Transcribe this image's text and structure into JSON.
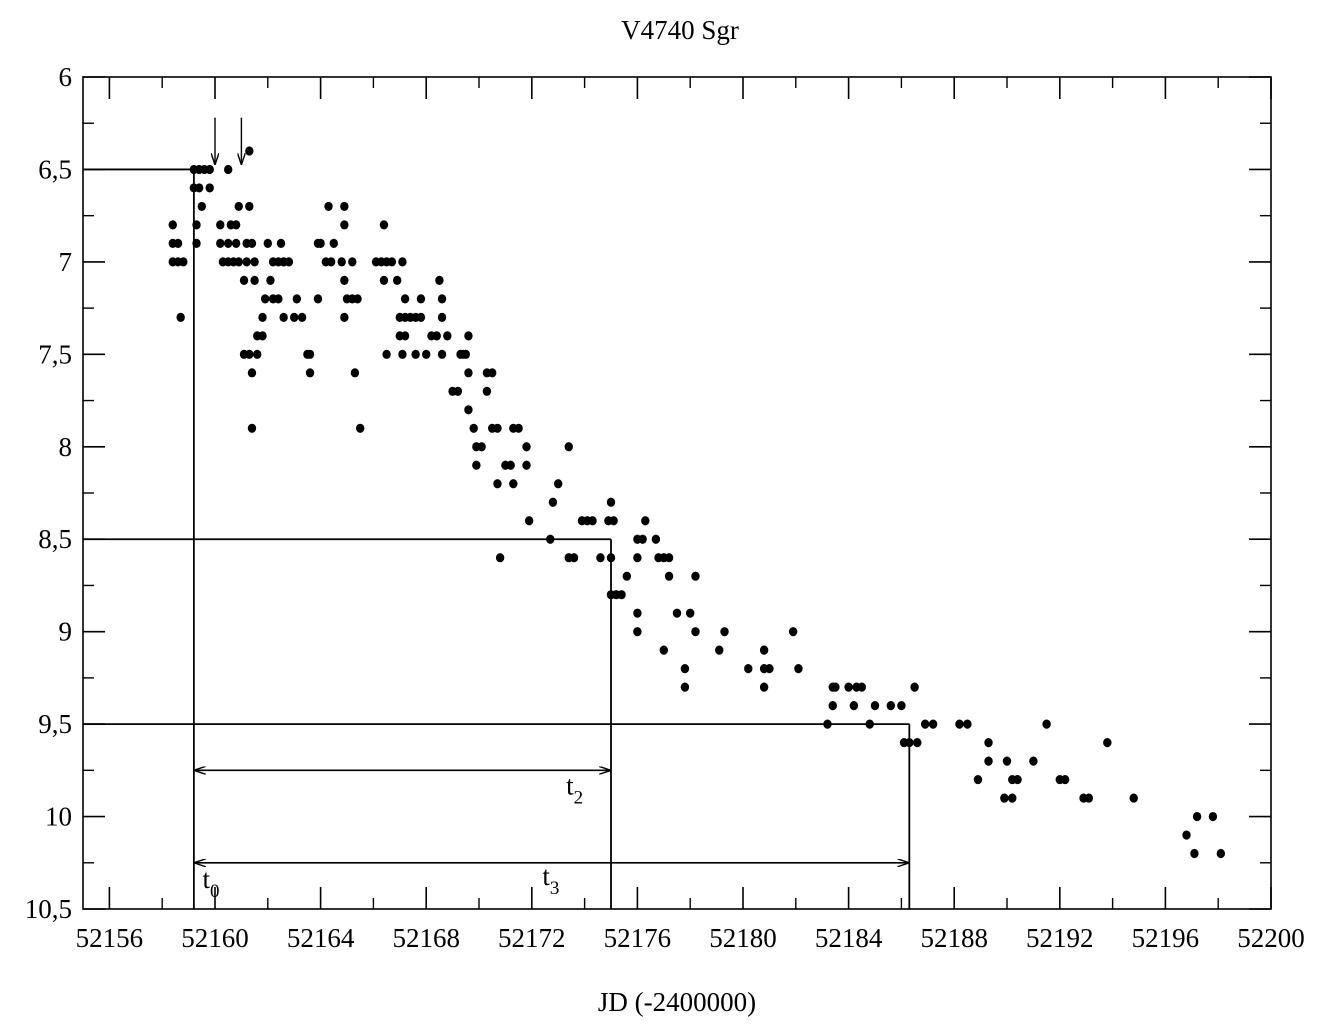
{
  "chart_data": {
    "type": "scatter",
    "title": "V4740 Sgr",
    "xlabel": "JD (-2400000)",
    "ylabel": "",
    "xlim": [
      52155,
      52200
    ],
    "ylim": [
      6,
      10.5
    ],
    "y_inverted": true,
    "grid": false,
    "legend": "none",
    "x_ticks": [
      52156,
      52160,
      52164,
      52168,
      52172,
      52176,
      52180,
      52184,
      52188,
      52192,
      52196,
      52200
    ],
    "x_tick_labels": [
      "52156",
      "52160",
      "52164",
      "52168",
      "52172",
      "52176",
      "52180",
      "52184",
      "52188",
      "52192",
      "52196",
      "52200"
    ],
    "y_ticks": [
      6,
      6.5,
      7,
      7.5,
      8,
      8.5,
      9,
      9.5,
      10,
      10.5
    ],
    "y_tick_labels": [
      "6",
      "6,5",
      "7",
      "7,5",
      "8",
      "8,5",
      "9",
      "9,5",
      "10",
      "10,5"
    ],
    "reference_lines": [
      {
        "y": 6.5,
        "x_from": 52155,
        "x_to": 52159.2
      },
      {
        "x": 52159.2,
        "y_from": 6.5,
        "y_to": 10.5
      },
      {
        "y": 8.5,
        "x_from": 52155,
        "x_to": 52175
      },
      {
        "x": 52175,
        "y_from": 8.5,
        "y_to": 10.5
      },
      {
        "y": 9.5,
        "x_from": 52155,
        "x_to": 52186.3
      },
      {
        "x": 52186.3,
        "y_from": 9.5,
        "y_to": 10.5
      }
    ],
    "arrows": [
      {
        "x": 52160.0,
        "y_from": 6.22,
        "y_to": 6.47
      },
      {
        "x": 52161.0,
        "y_from": 6.22,
        "y_to": 6.47
      }
    ],
    "intervals": [
      {
        "label": "t",
        "sub": "2",
        "y": 9.75,
        "x_from": 52159.2,
        "x_to": 52175,
        "label_x": 52173.3,
        "label_y": 9.88
      },
      {
        "label": "t",
        "sub": "3",
        "y": 10.25,
        "x_from": 52159.2,
        "x_to": 52186.3,
        "label_x": 52172.4,
        "label_y": 10.37
      }
    ],
    "annotations": [
      {
        "label": "t",
        "sub": "0",
        "x": 52159.6,
        "y": 10.42
      }
    ],
    "series": [
      {
        "name": "",
        "points": [
          [
            52158.4,
            6.8
          ],
          [
            52158.4,
            6.9
          ],
          [
            52158.6,
            6.9
          ],
          [
            52158.4,
            7.0
          ],
          [
            52158.6,
            7.0
          ],
          [
            52158.8,
            7.0
          ],
          [
            52158.7,
            7.3
          ],
          [
            52159.2,
            6.5
          ],
          [
            52159.4,
            6.5
          ],
          [
            52159.6,
            6.5
          ],
          [
            52159.8,
            6.5
          ],
          [
            52159.2,
            6.6
          ],
          [
            52159.4,
            6.6
          ],
          [
            52159.8,
            6.6
          ],
          [
            52159.5,
            6.7
          ],
          [
            52159.3,
            6.8
          ],
          [
            52159.3,
            6.9
          ],
          [
            52160.5,
            6.5
          ],
          [
            52161.3,
            6.4
          ],
          [
            52160.2,
            6.8
          ],
          [
            52160.6,
            6.8
          ],
          [
            52160.8,
            6.8
          ],
          [
            52160.2,
            6.9
          ],
          [
            52160.5,
            6.9
          ],
          [
            52160.8,
            6.9
          ],
          [
            52160.3,
            7.0
          ],
          [
            52160.5,
            7.0
          ],
          [
            52160.7,
            7.0
          ],
          [
            52160.9,
            7.0
          ],
          [
            52160.9,
            6.7
          ],
          [
            52161.3,
            6.7
          ],
          [
            52161.2,
            6.9
          ],
          [
            52161.4,
            6.9
          ],
          [
            52161.2,
            7.0
          ],
          [
            52161.5,
            7.0
          ],
          [
            52161.1,
            7.1
          ],
          [
            52161.5,
            7.1
          ],
          [
            52161.1,
            7.5
          ],
          [
            52161.3,
            7.5
          ],
          [
            52161.6,
            7.5
          ],
          [
            52161.4,
            7.6
          ],
          [
            52161.4,
            7.9
          ],
          [
            52161.6,
            7.4
          ],
          [
            52161.8,
            7.4
          ],
          [
            52161.8,
            7.3
          ],
          [
            52161.9,
            7.2
          ],
          [
            52162.0,
            6.9
          ],
          [
            52162.1,
            7.1
          ],
          [
            52162.2,
            7.0
          ],
          [
            52162.4,
            7.0
          ],
          [
            52162.6,
            7.0
          ],
          [
            52162.2,
            7.2
          ],
          [
            52162.4,
            7.2
          ],
          [
            52162.6,
            7.3
          ],
          [
            52162.5,
            6.9
          ],
          [
            52162.6,
            7.0
          ],
          [
            52162.8,
            7.0
          ],
          [
            52163.0,
            7.3
          ],
          [
            52163.1,
            7.2
          ],
          [
            52163.3,
            7.3
          ],
          [
            52163.5,
            7.5
          ],
          [
            52163.6,
            7.5
          ],
          [
            52163.6,
            7.6
          ],
          [
            52163.9,
            7.2
          ],
          [
            52163.9,
            6.9
          ],
          [
            52164.0,
            6.9
          ],
          [
            52164.2,
            7.0
          ],
          [
            52164.4,
            7.0
          ],
          [
            52164.3,
            6.7
          ],
          [
            52164.5,
            6.9
          ],
          [
            52164.8,
            7.0
          ],
          [
            52164.9,
            6.7
          ],
          [
            52164.9,
            6.8
          ],
          [
            52164.9,
            7.1
          ],
          [
            52164.9,
            7.3
          ],
          [
            52165.0,
            7.2
          ],
          [
            52165.2,
            7.2
          ],
          [
            52165.4,
            7.2
          ],
          [
            52165.2,
            7.0
          ],
          [
            52165.3,
            7.6
          ],
          [
            52165.5,
            7.9
          ],
          [
            52166.1,
            7.0
          ],
          [
            52166.3,
            7.0
          ],
          [
            52166.5,
            7.0
          ],
          [
            52166.7,
            7.0
          ],
          [
            52166.4,
            6.8
          ],
          [
            52166.4,
            7.1
          ],
          [
            52166.5,
            7.5
          ],
          [
            52166.9,
            7.1
          ],
          [
            52167.0,
            7.3
          ],
          [
            52167.2,
            7.3
          ],
          [
            52167.1,
            7.0
          ],
          [
            52167.0,
            7.4
          ],
          [
            52167.2,
            7.4
          ],
          [
            52167.1,
            7.5
          ],
          [
            52167.2,
            7.2
          ],
          [
            52167.4,
            7.3
          ],
          [
            52167.6,
            7.3
          ],
          [
            52167.8,
            7.2
          ],
          [
            52167.6,
            7.5
          ],
          [
            52167.8,
            7.3
          ],
          [
            52168.0,
            7.5
          ],
          [
            52168.2,
            7.4
          ],
          [
            52168.4,
            7.4
          ],
          [
            52168.5,
            7.1
          ],
          [
            52168.6,
            7.2
          ],
          [
            52168.6,
            7.3
          ],
          [
            52168.6,
            7.5
          ],
          [
            52168.8,
            7.4
          ],
          [
            52169.0,
            7.7
          ],
          [
            52169.2,
            7.7
          ],
          [
            52169.3,
            7.5
          ],
          [
            52169.5,
            7.5
          ],
          [
            52169.6,
            7.4
          ],
          [
            52169.4,
            7.5
          ],
          [
            52169.6,
            7.6
          ],
          [
            52169.6,
            7.8
          ],
          [
            52169.9,
            8.0
          ],
          [
            52169.9,
            8.1
          ],
          [
            52169.8,
            7.9
          ],
          [
            52170.1,
            8.0
          ],
          [
            52170.3,
            7.7
          ],
          [
            52170.5,
            7.6
          ],
          [
            52170.3,
            7.6
          ],
          [
            52170.5,
            7.9
          ],
          [
            52170.7,
            7.9
          ],
          [
            52170.7,
            8.2
          ],
          [
            52170.8,
            8.6
          ],
          [
            52171.0,
            8.1
          ],
          [
            52171.2,
            8.1
          ],
          [
            52171.3,
            8.2
          ],
          [
            52171.3,
            7.9
          ],
          [
            52171.5,
            7.9
          ],
          [
            52171.8,
            8.0
          ],
          [
            52171.8,
            8.1
          ],
          [
            52171.9,
            8.4
          ],
          [
            52172.7,
            8.5
          ],
          [
            52172.8,
            8.3
          ],
          [
            52173.0,
            8.2
          ],
          [
            52173.4,
            8.0
          ],
          [
            52173.4,
            8.6
          ],
          [
            52173.6,
            8.6
          ],
          [
            52173.9,
            8.4
          ],
          [
            52174.1,
            8.4
          ],
          [
            52174.3,
            8.4
          ],
          [
            52174.6,
            8.6
          ],
          [
            52174.9,
            8.4
          ],
          [
            52175.1,
            8.4
          ],
          [
            52175.0,
            8.3
          ],
          [
            52175.0,
            8.6
          ],
          [
            52175.0,
            8.8
          ],
          [
            52175.2,
            8.8
          ],
          [
            52175.4,
            8.8
          ],
          [
            52175.6,
            8.7
          ],
          [
            52176.0,
            8.5
          ],
          [
            52176.2,
            8.5
          ],
          [
            52176.0,
            8.6
          ],
          [
            52176.0,
            8.9
          ],
          [
            52176.0,
            9.0
          ],
          [
            52176.3,
            8.4
          ],
          [
            52176.7,
            8.5
          ],
          [
            52176.8,
            8.6
          ],
          [
            52177.0,
            8.6
          ],
          [
            52177.0,
            9.1
          ],
          [
            52177.2,
            8.6
          ],
          [
            52177.2,
            8.7
          ],
          [
            52177.5,
            8.9
          ],
          [
            52178.0,
            8.9
          ],
          [
            52177.8,
            9.2
          ],
          [
            52177.8,
            9.3
          ],
          [
            52178.2,
            8.7
          ],
          [
            52178.2,
            9.0
          ],
          [
            52179.1,
            9.1
          ],
          [
            52179.3,
            9.0
          ],
          [
            52180.2,
            9.2
          ],
          [
            52180.8,
            9.1
          ],
          [
            52180.8,
            9.2
          ],
          [
            52181.0,
            9.2
          ],
          [
            52180.8,
            9.3
          ],
          [
            52181.9,
            9.0
          ],
          [
            52182.1,
            9.2
          ],
          [
            52183.2,
            9.5
          ],
          [
            52183.4,
            9.3
          ],
          [
            52183.5,
            9.3
          ],
          [
            52183.4,
            9.4
          ],
          [
            52184.0,
            9.3
          ],
          [
            52184.3,
            9.3
          ],
          [
            52184.2,
            9.4
          ],
          [
            52184.5,
            9.3
          ],
          [
            52184.8,
            9.5
          ],
          [
            52185.0,
            9.4
          ],
          [
            52185.6,
            9.4
          ],
          [
            52186.0,
            9.4
          ],
          [
            52186.1,
            9.6
          ],
          [
            52186.3,
            9.6
          ],
          [
            52186.5,
            9.3
          ],
          [
            52186.6,
            9.6
          ],
          [
            52186.9,
            9.5
          ],
          [
            52187.2,
            9.5
          ],
          [
            52188.2,
            9.5
          ],
          [
            52188.5,
            9.5
          ],
          [
            52188.9,
            9.8
          ],
          [
            52189.3,
            9.6
          ],
          [
            52189.3,
            9.7
          ],
          [
            52189.9,
            9.9
          ],
          [
            52190.0,
            9.7
          ],
          [
            52190.2,
            9.9
          ],
          [
            52190.2,
            9.8
          ],
          [
            52190.4,
            9.8
          ],
          [
            52191.0,
            9.7
          ],
          [
            52191.5,
            9.5
          ],
          [
            52192.0,
            9.8
          ],
          [
            52192.2,
            9.8
          ],
          [
            52192.9,
            9.9
          ],
          [
            52193.1,
            9.9
          ],
          [
            52193.8,
            9.6
          ],
          [
            52194.8,
            9.9
          ],
          [
            52196.8,
            10.1
          ],
          [
            52197.2,
            10.0
          ],
          [
            52197.1,
            10.2
          ],
          [
            52197.8,
            10.0
          ],
          [
            52198.1,
            10.2
          ]
        ]
      }
    ]
  }
}
